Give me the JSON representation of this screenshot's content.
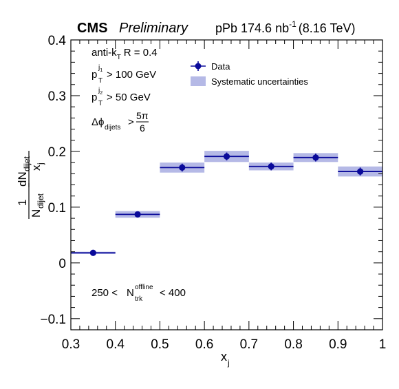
{
  "header": {
    "experiment": "CMS",
    "status": "Preliminary",
    "lumi_prefix": "pPb 174.6 nb",
    "lumi_exp": "-1",
    "energy": "(8.16 TeV)"
  },
  "annotations": {
    "jet_algo": "anti-k",
    "jet_algo_sub": "T",
    "jet_radius": "R = 0.4",
    "pt1_p": "p",
    "pt1_sup": "j",
    "pt1_supsub": "1",
    "pt1_sub": "T",
    "pt1_cut": "> 100 GeV",
    "pt2_p": "p",
    "pt2_sup": "j",
    "pt2_supsub": "2",
    "pt2_sub": "T",
    "pt2_cut": "> 50 GeV",
    "dphi": "Δϕ",
    "dphi_sub": "dijets",
    "dphi_gt": ">",
    "dphi_num": "5π",
    "dphi_den": "6",
    "mult_low": "250 <",
    "mult_n": "N",
    "mult_sup": "offline",
    "mult_sub": "trk",
    "mult_high": "< 400"
  },
  "legend": {
    "data_label": "Data",
    "syst_label": "Systematic uncertainties"
  },
  "axes": {
    "xlabel": "x",
    "xlabel_sub": "j",
    "ylabel_frac_num": "1",
    "ylabel_n": "N",
    "ylabel_n_sub": "dijet",
    "ylabel_dn": "dN",
    "ylabel_dn_sub": "dijet",
    "ylabel_x": "x",
    "ylabel_x_sub": "j"
  },
  "colors": {
    "data": "#0a0a9a",
    "syst_fill": "#b5b9e6"
  },
  "chart_data": {
    "type": "scatter",
    "xlim": [
      0.3,
      1.0
    ],
    "ylim": [
      -0.12,
      0.4
    ],
    "xticks": [
      0.3,
      0.4,
      0.5,
      0.6,
      0.7,
      0.8,
      0.9,
      1.0
    ],
    "xtick_labels": [
      "0.3",
      "0.4",
      "0.5",
      "0.6",
      "0.7",
      "0.8",
      "0.9",
      "1"
    ],
    "yticks": [
      -0.1,
      0.0,
      0.1,
      0.2,
      0.3,
      0.4
    ],
    "ytick_labels": [
      "−0.1",
      "0",
      "0.1",
      "0.2",
      "0.3",
      "0.4"
    ],
    "grid": false,
    "legend_position": "top-right",
    "series": [
      {
        "name": "Data",
        "bins": [
          [
            0.3,
            0.4
          ],
          [
            0.4,
            0.5
          ],
          [
            0.5,
            0.6
          ],
          [
            0.6,
            0.7
          ],
          [
            0.7,
            0.8
          ],
          [
            0.8,
            0.9
          ],
          [
            0.9,
            1.0
          ]
        ],
        "x": [
          0.35,
          0.45,
          0.55,
          0.65,
          0.75,
          0.85,
          0.95
        ],
        "y": [
          0.018,
          0.087,
          0.171,
          0.191,
          0.173,
          0.189,
          0.164
        ],
        "stat_err": [
          0.002,
          0.004,
          0.007,
          0.007,
          0.007,
          0.007,
          0.007
        ],
        "syst_err": [
          0.002,
          0.006,
          0.009,
          0.01,
          0.007,
          0.008,
          0.009
        ]
      }
    ]
  }
}
